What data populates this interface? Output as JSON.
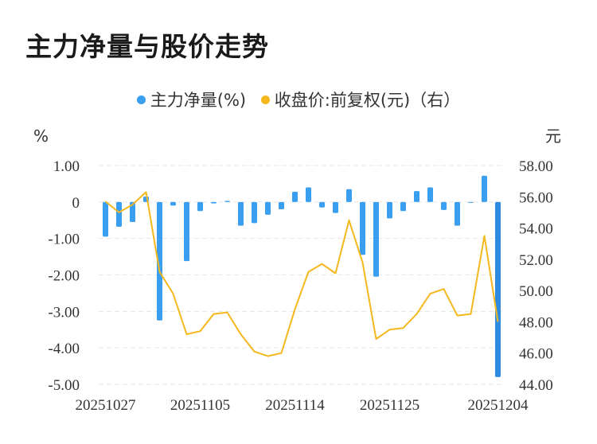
{
  "title": "主力净量与股价走势",
  "legend": [
    {
      "label": "主力净量(%)",
      "color": "#3a9ff0"
    },
    {
      "label": "收盘价:前复权(元)（右）",
      "color": "#f4b81c"
    }
  ],
  "chart_data": {
    "type": "bar+line",
    "title": "主力净量与股价走势",
    "left_unit": "%",
    "right_unit": "元",
    "left_ylim": [
      -5.0,
      1.0
    ],
    "right_ylim": [
      44.0,
      58.0
    ],
    "left_ticks": [
      "1.00",
      "0",
      "-1.00",
      "-2.00",
      "-3.00",
      "-4.00",
      "-5.00"
    ],
    "right_ticks": [
      "58.00",
      "56.00",
      "54.00",
      "52.00",
      "50.00",
      "48.00",
      "46.00",
      "44.00"
    ],
    "x_tick_labels": [
      "20251027",
      "20251105",
      "20251114",
      "20251125",
      "20251204"
    ],
    "x_tick_index": [
      0,
      7,
      14,
      21,
      29
    ],
    "grid": true,
    "bar_color": "#3a9ff0",
    "bar_color_last": "#2f8be0",
    "line_color": "#f4b81c",
    "series": [
      {
        "name": "主力净量(%)",
        "axis": "left",
        "values": [
          -0.95,
          -0.68,
          -0.55,
          0.15,
          -3.25,
          -0.1,
          -1.62,
          -0.25,
          -0.04,
          0.03,
          -0.65,
          -0.58,
          -0.35,
          -0.2,
          0.28,
          0.4,
          -0.15,
          -0.3,
          0.35,
          -1.45,
          -2.05,
          -0.45,
          -0.25,
          0.3,
          0.4,
          -0.22,
          -0.65,
          -0.02,
          0.72,
          -4.8
        ]
      },
      {
        "name": "收盘价:前复权(元)（右）",
        "axis": "right",
        "values": [
          55.7,
          55.0,
          55.5,
          56.3,
          51.2,
          49.8,
          47.2,
          47.4,
          48.5,
          48.6,
          47.2,
          46.1,
          45.8,
          46.0,
          48.8,
          51.2,
          51.7,
          51.1,
          54.5,
          51.8,
          46.9,
          47.5,
          47.6,
          48.5,
          49.8,
          50.1,
          48.4,
          48.5,
          53.5,
          48.0
        ]
      }
    ]
  }
}
